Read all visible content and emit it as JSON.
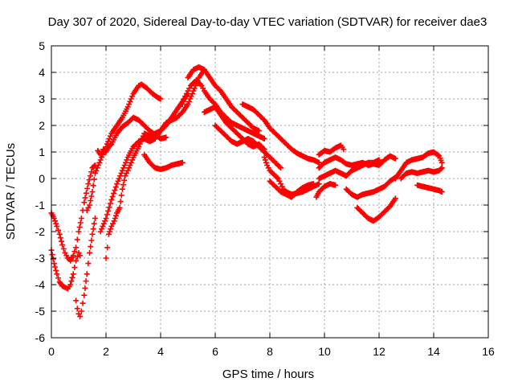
{
  "chart_data": {
    "type": "scatter",
    "title": "Day 307 of 2020, Sidereal Day-to-day VTEC variation (SDTVAR) for receiver dae3",
    "xlabel": "GPS time / hours",
    "ylabel": "SDTVAR / TECUs",
    "xlim": [
      0,
      16
    ],
    "ylim": [
      -6,
      5
    ],
    "xticks": [
      0,
      2,
      4,
      6,
      8,
      10,
      12,
      14,
      16
    ],
    "yticks": [
      -6,
      -5,
      -4,
      -3,
      -2,
      -1,
      0,
      1,
      2,
      3,
      4,
      5
    ],
    "grid": true,
    "marker": "plus",
    "color": "#ff0000",
    "series": [
      {
        "x": [
          0.0,
          0.1,
          0.2,
          0.3,
          0.4,
          0.5,
          0.6,
          0.7,
          0.8,
          0.9,
          1.0,
          1.1,
          1.2,
          1.35,
          1.5,
          1.6
        ],
        "y": [
          -1.3,
          -1.5,
          -1.8,
          -2.1,
          -2.5,
          -2.8,
          -3.0,
          -3.1,
          -2.9,
          -2.6,
          -2.0,
          -1.5,
          -0.9,
          -0.2,
          0.4,
          0.5
        ]
      },
      {
        "x": [
          0.0,
          0.1,
          0.2,
          0.3,
          0.4,
          0.5,
          0.6,
          0.7,
          0.8,
          0.9,
          1.0,
          1.05
        ],
        "y": [
          -2.7,
          -3.2,
          -3.6,
          -3.9,
          -4.05,
          -4.1,
          -4.15,
          -4.0,
          -3.6,
          -3.1,
          -2.8,
          -2.9
        ]
      },
      {
        "x": [
          0.9,
          0.95,
          1.0,
          1.05,
          1.1,
          1.2,
          1.3,
          1.4,
          1.5,
          1.6
        ],
        "y": [
          -4.6,
          -4.9,
          -5.1,
          -5.2,
          -5.0,
          -4.4,
          -3.6,
          -2.8,
          -2.1,
          -1.5
        ]
      },
      {
        "x": [
          1.3,
          1.4,
          1.5,
          1.6,
          1.8,
          2.0,
          2.2,
          2.4,
          2.6,
          2.8,
          3.0,
          3.2,
          3.3,
          3.5,
          3.7,
          3.9,
          4.0
        ],
        "y": [
          -1.2,
          -1.0,
          -0.5,
          0.2,
          0.7,
          1.2,
          1.7,
          2.0,
          2.3,
          2.7,
          3.2,
          3.5,
          3.55,
          3.4,
          3.2,
          3.05,
          3.0
        ]
      },
      {
        "x": [
          1.7,
          1.8,
          1.9,
          2.0,
          2.1,
          2.2,
          2.4,
          2.6,
          2.8,
          3.0,
          3.2,
          3.4,
          3.6,
          3.8,
          4.0,
          4.2
        ],
        "y": [
          1.05,
          0.9,
          1.1,
          1.0,
          1.2,
          1.3,
          1.7,
          1.95,
          2.1,
          2.3,
          2.2,
          2.0,
          1.8,
          1.65,
          1.5,
          1.55
        ]
      },
      {
        "x": [
          1.8,
          2.0,
          2.2,
          2.4,
          2.6,
          2.8,
          3.0,
          3.2,
          3.4,
          3.6,
          3.8,
          4.0,
          4.2,
          4.4,
          4.6,
          4.8,
          5.0,
          5.2,
          5.4,
          5.6
        ],
        "y": [
          -2.0,
          -1.5,
          -0.8,
          -0.2,
          0.3,
          0.8,
          1.2,
          1.4,
          1.5,
          1.4,
          1.5,
          1.8,
          2.1,
          2.2,
          2.3,
          2.5,
          2.8,
          3.3,
          3.8,
          4.1
        ]
      },
      {
        "x": [
          2.0,
          2.05,
          2.1,
          2.2,
          2.3,
          2.4,
          2.5,
          2.6,
          2.7,
          2.8,
          3.0,
          3.2,
          3.4,
          3.6,
          3.8,
          4.0,
          4.2,
          4.4,
          4.6,
          4.8,
          5.0
        ],
        "y": [
          -3.0,
          -2.6,
          -2.1,
          -1.8,
          -1.6,
          -1.3,
          -1.1,
          -0.4,
          0.1,
          0.3,
          0.8,
          1.2,
          1.7,
          1.6,
          1.7,
          1.8,
          2.0,
          2.3,
          2.6,
          2.9,
          3.2
        ]
      },
      {
        "x": [
          3.4,
          3.6,
          3.8,
          4.0,
          4.2,
          4.4,
          4.6,
          4.8
        ],
        "y": [
          0.9,
          0.6,
          0.4,
          0.35,
          0.4,
          0.5,
          0.55,
          0.6
        ]
      },
      {
        "x": [
          4.8,
          4.9,
          5.0,
          5.1,
          5.2,
          5.3,
          5.4,
          5.5,
          5.6,
          5.8,
          6.0,
          6.2,
          6.4,
          6.6,
          6.8,
          7.0,
          7.2,
          7.4,
          7.6,
          7.8
        ],
        "y": [
          2.8,
          3.1,
          3.3,
          3.5,
          3.6,
          3.7,
          3.6,
          3.5,
          3.3,
          3.0,
          2.8,
          2.5,
          2.3,
          2.1,
          2.0,
          1.9,
          1.8,
          1.7,
          1.6,
          1.5
        ]
      },
      {
        "x": [
          5.0,
          5.2,
          5.4,
          5.6,
          5.8,
          6.0,
          6.2,
          6.4,
          6.6,
          6.8,
          7.0,
          7.2,
          7.4,
          7.6
        ],
        "y": [
          3.8,
          4.1,
          4.2,
          4.1,
          3.8,
          3.5,
          3.3,
          3.0,
          2.7,
          2.5,
          2.3,
          2.1,
          1.9,
          1.8
        ]
      },
      {
        "x": [
          5.6,
          5.8,
          6.0,
          6.2,
          6.4,
          6.6,
          6.8,
          7.0,
          7.2,
          7.4,
          7.6,
          7.8
        ],
        "y": [
          2.5,
          2.6,
          2.7,
          2.4,
          2.1,
          1.9,
          1.7,
          1.5,
          1.3,
          1.2,
          1.3,
          1.1
        ]
      },
      {
        "x": [
          6.0,
          6.2,
          6.4,
          6.6,
          6.8,
          7.0,
          7.2,
          7.4,
          7.6,
          7.8,
          8.0,
          8.2,
          8.4
        ],
        "y": [
          2.0,
          1.8,
          1.6,
          1.4,
          1.3,
          1.4,
          1.5,
          1.4,
          1.2,
          1.0,
          0.8,
          0.6,
          0.4
        ]
      },
      {
        "x": [
          7.0,
          7.2,
          7.4,
          7.6,
          7.8,
          8.0,
          8.2,
          8.4,
          8.6,
          8.8,
          9.0,
          9.2,
          9.4,
          9.6,
          9.8
        ],
        "y": [
          2.8,
          2.7,
          2.6,
          2.4,
          2.2,
          1.9,
          1.7,
          1.5,
          1.3,
          1.1,
          0.95,
          0.85,
          0.75,
          0.7,
          0.6
        ]
      },
      {
        "x": [
          7.8,
          7.9,
          8.0,
          8.1,
          8.2,
          8.3,
          8.4,
          8.5,
          8.6,
          8.8,
          9.0,
          9.2,
          9.4,
          9.6,
          9.8
        ],
        "y": [
          0.8,
          0.5,
          0.3,
          0.2,
          0.1,
          0.0,
          -0.2,
          -0.4,
          -0.5,
          -0.6,
          -0.55,
          -0.5,
          -0.4,
          -0.3,
          -0.2
        ]
      },
      {
        "x": [
          8.0,
          8.2,
          8.4,
          8.6,
          8.8,
          9.0,
          9.2,
          9.4,
          9.6
        ],
        "y": [
          -0.1,
          -0.3,
          -0.5,
          -0.6,
          -0.7,
          -0.5,
          -0.35,
          -0.25,
          -0.2
        ]
      },
      {
        "x": [
          9.8,
          10.0,
          10.2,
          10.4,
          10.6,
          10.7
        ],
        "y": [
          0.9,
          1.05,
          1.0,
          1.15,
          1.25,
          1.1
        ]
      },
      {
        "x": [
          9.8,
          10.0,
          10.2,
          10.4,
          10.6,
          10.8,
          11.0,
          11.2,
          11.4,
          11.6,
          11.8,
          12.0,
          12.2,
          12.4,
          12.6
        ],
        "y": [
          0.4,
          0.6,
          0.7,
          0.8,
          0.7,
          0.55,
          0.5,
          0.55,
          0.6,
          0.5,
          0.55,
          0.5,
          0.7,
          0.85,
          0.75
        ]
      },
      {
        "x": [
          9.8,
          10.0,
          10.2,
          10.4,
          10.6,
          10.8,
          11.0,
          11.2,
          11.4,
          11.6,
          11.8,
          12.0
        ],
        "y": [
          0.0,
          0.1,
          0.2,
          0.3,
          0.2,
          0.1,
          0.3,
          0.4,
          0.5,
          0.6,
          0.6,
          0.7
        ]
      },
      {
        "x": [
          9.7,
          9.8,
          10.0,
          10.2,
          10.4
        ],
        "y": [
          -0.7,
          -0.5,
          -0.3,
          -0.2,
          -0.25
        ]
      },
      {
        "x": [
          10.8,
          11.0,
          11.2,
          11.4,
          11.6,
          11.8,
          12.0,
          12.2,
          12.4,
          12.6
        ],
        "y": [
          -0.4,
          -0.6,
          -0.7,
          -0.6,
          -0.55,
          -0.5,
          -0.4,
          -0.3,
          -0.1,
          0.05
        ]
      },
      {
        "x": [
          11.2,
          11.4,
          11.6,
          11.8,
          12.0,
          12.2,
          12.4,
          12.6
        ],
        "y": [
          -1.1,
          -1.3,
          -1.5,
          -1.6,
          -1.45,
          -1.25,
          -1.05,
          -0.75
        ]
      },
      {
        "x": [
          12.6,
          12.8,
          13.0,
          13.2,
          13.4,
          13.6,
          13.8,
          14.0,
          14.2,
          14.3
        ],
        "y": [
          0.0,
          0.3,
          0.6,
          0.7,
          0.75,
          0.8,
          0.95,
          1.0,
          0.85,
          0.6
        ]
      },
      {
        "x": [
          12.8,
          13.0,
          13.2,
          13.4,
          13.6,
          13.8,
          14.0,
          14.2,
          14.3
        ],
        "y": [
          0.0,
          0.2,
          0.25,
          0.2,
          0.25,
          0.3,
          0.25,
          0.3,
          0.4
        ]
      },
      {
        "x": [
          13.4,
          13.6,
          13.8,
          14.0,
          14.2,
          14.3
        ],
        "y": [
          -0.25,
          -0.3,
          -0.35,
          -0.4,
          -0.45,
          -0.5
        ]
      }
    ]
  }
}
